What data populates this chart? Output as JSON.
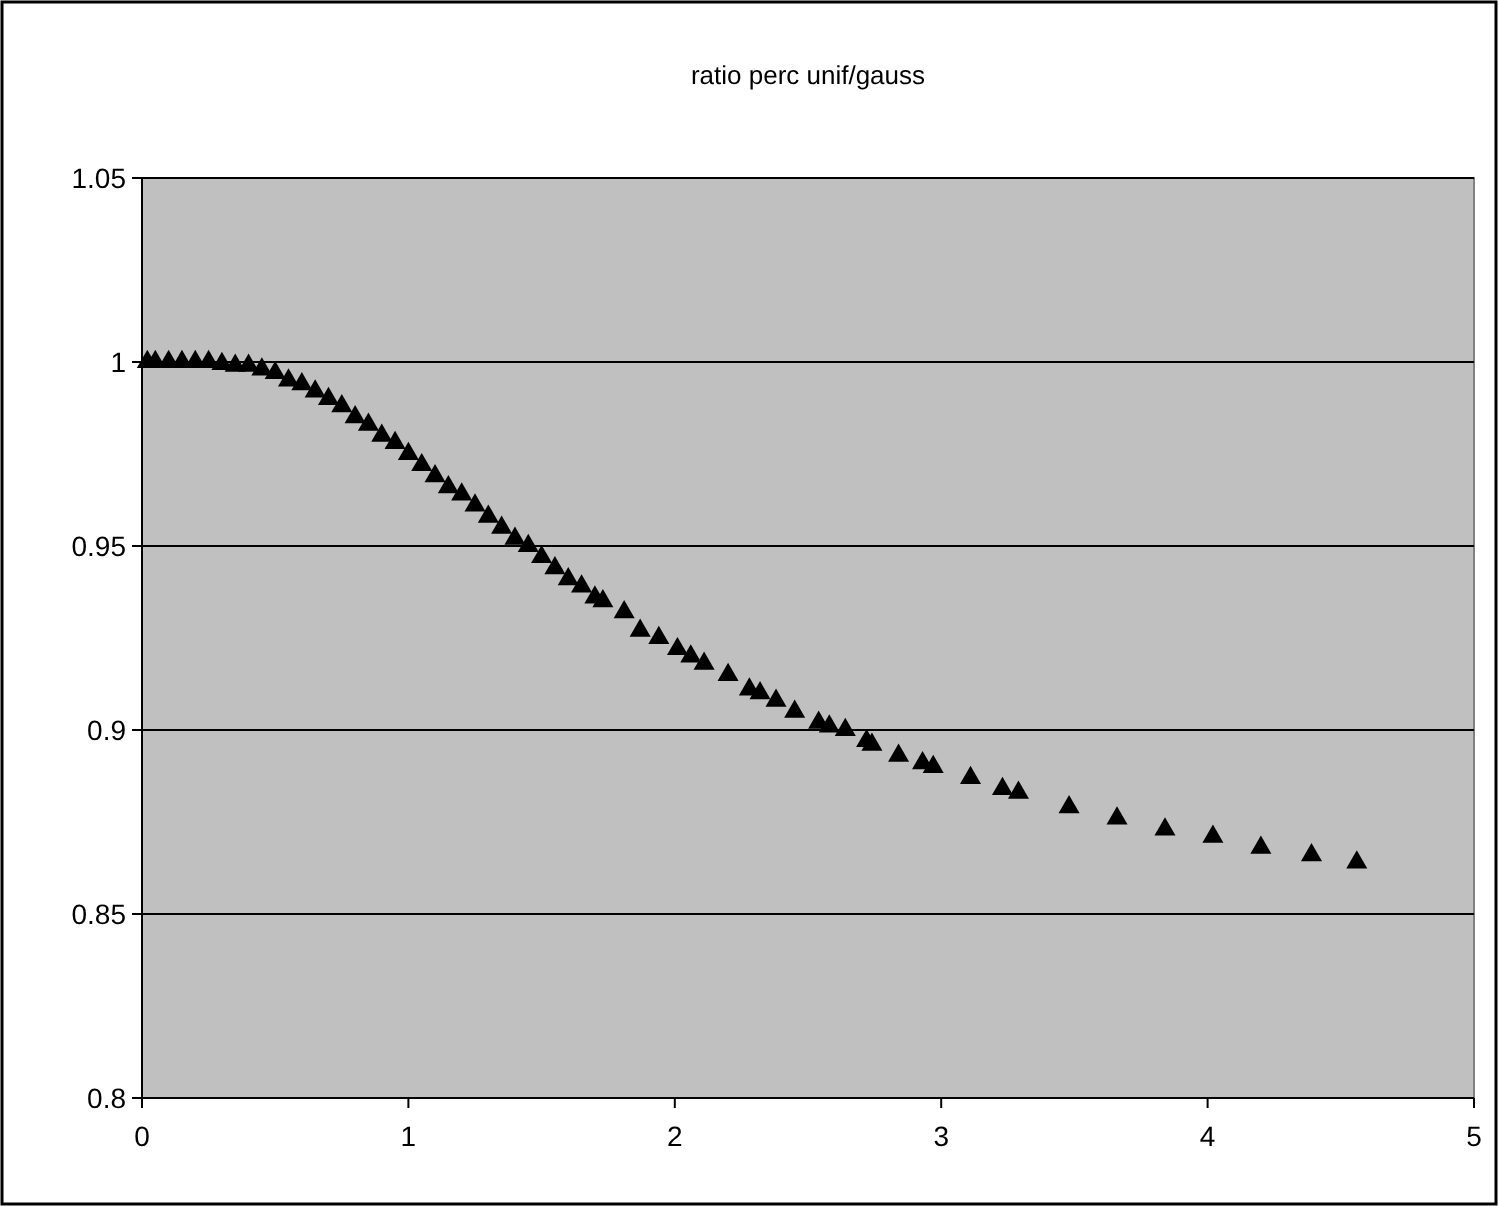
{
  "chart_data": {
    "type": "scatter",
    "title": "ratio perc unif/gauss",
    "marker": "triangle",
    "grid": "y",
    "xlim": [
      0,
      5
    ],
    "xticks": [
      0,
      1,
      2,
      3,
      4,
      5
    ],
    "ylim": [
      0.8,
      1.05
    ],
    "yticks": [
      0.8,
      0.85,
      0.9,
      0.95,
      1,
      1.05
    ],
    "series": [
      {
        "color": "#000000",
        "x": [
          0.02,
          0.05,
          0.1,
          0.15,
          0.2,
          0.25,
          0.3,
          0.35,
          0.4,
          0.45,
          0.5,
          0.55,
          0.6,
          0.65,
          0.7,
          0.75,
          0.8,
          0.85,
          0.9,
          0.95,
          1.0,
          1.05,
          1.1,
          1.15,
          1.2,
          1.25,
          1.3,
          1.35,
          1.4,
          1.45,
          1.5,
          1.55,
          1.6,
          1.65,
          1.7,
          1.73,
          1.81,
          1.87,
          1.94,
          2.01,
          2.06,
          2.11,
          2.2,
          2.28,
          2.32,
          2.38,
          2.45,
          2.54,
          2.58,
          2.64,
          2.72,
          2.74,
          2.84,
          2.93,
          2.97,
          3.11,
          3.23,
          3.29,
          3.48,
          3.66,
          3.84,
          4.02,
          4.2,
          4.39,
          4.56
        ],
        "values": [
          1.0,
          1.0,
          1.0,
          1.0,
          1.0,
          1.0,
          0.9995,
          0.999,
          0.999,
          0.998,
          0.997,
          0.995,
          0.994,
          0.992,
          0.99,
          0.988,
          0.985,
          0.983,
          0.98,
          0.978,
          0.975,
          0.972,
          0.969,
          0.966,
          0.964,
          0.961,
          0.958,
          0.955,
          0.952,
          0.95,
          0.947,
          0.944,
          0.941,
          0.939,
          0.936,
          0.935,
          0.932,
          0.927,
          0.925,
          0.922,
          0.92,
          0.918,
          0.915,
          0.911,
          0.91,
          0.908,
          0.905,
          0.902,
          0.901,
          0.9,
          0.897,
          0.896,
          0.893,
          0.891,
          0.89,
          0.887,
          0.884,
          0.883,
          0.879,
          0.876,
          0.873,
          0.871,
          0.868,
          0.866,
          0.864
        ]
      }
    ]
  }
}
